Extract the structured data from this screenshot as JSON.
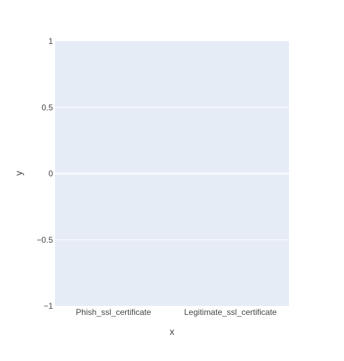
{
  "chart_data": {
    "type": "bar",
    "categories": [
      "Phish_ssl_certificate",
      "Legitimate_ssl_certificate"
    ],
    "values": [
      0,
      0
    ],
    "xlabel": "x",
    "ylabel": "y",
    "ylim": [
      -1,
      1
    ],
    "yticks": [
      1,
      0.5,
      0,
      -0.5,
      -1
    ],
    "ytick_labels": [
      "1",
      "0.5",
      "0",
      "−0.5",
      "−1"
    ],
    "grid": true,
    "colors": {
      "plot_background": "#e5ecf6",
      "gridline": "#ffffff",
      "text": "#444444",
      "bar": "#636efa"
    }
  }
}
